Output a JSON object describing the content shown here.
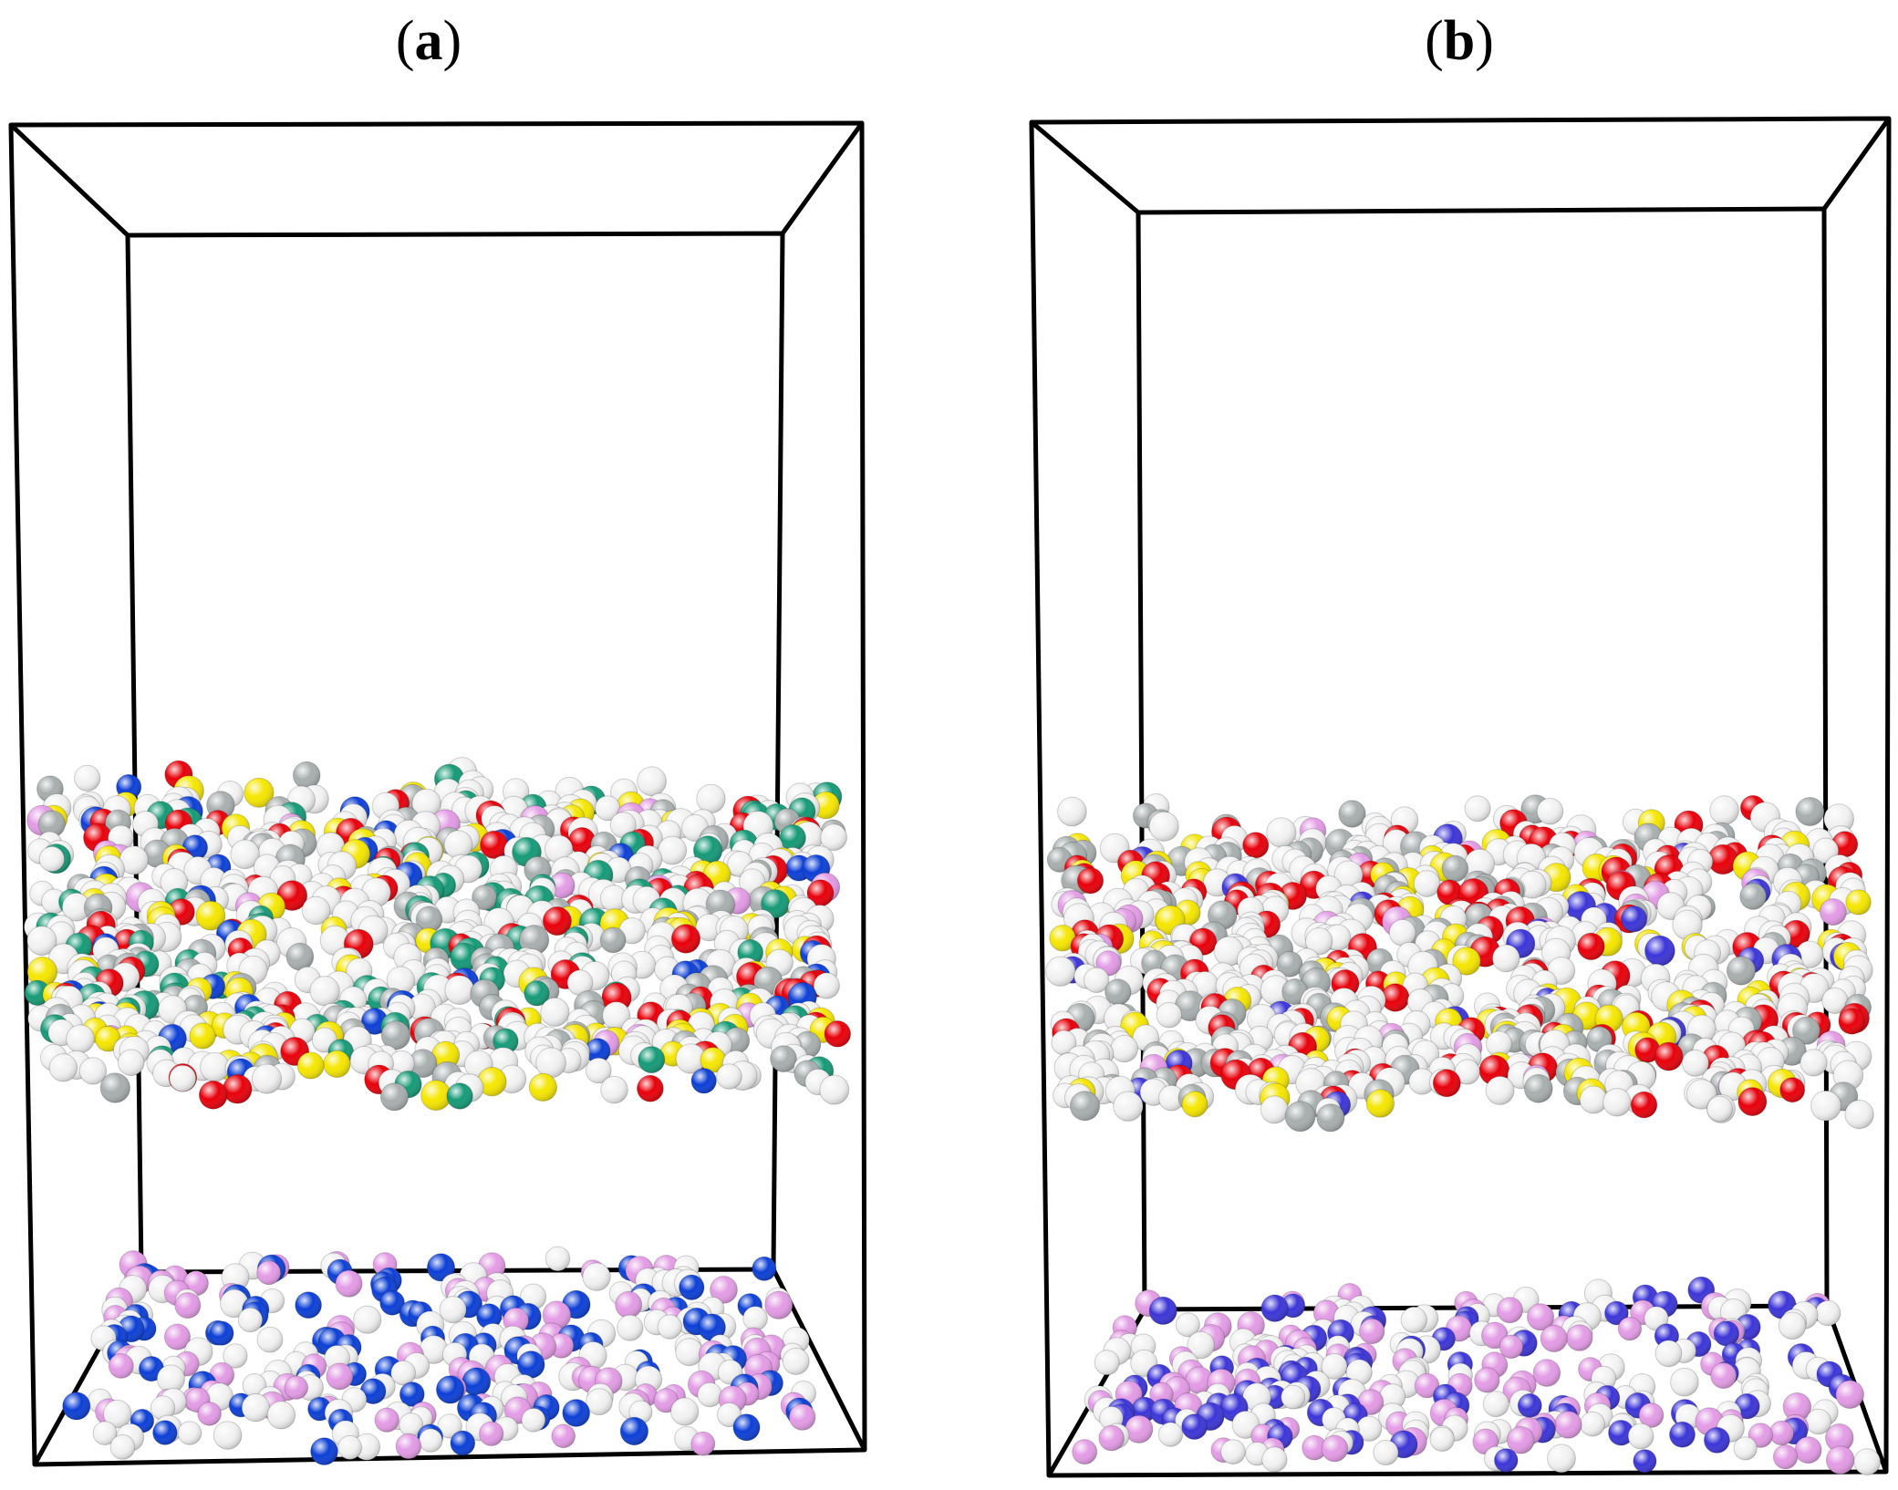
{
  "panels": [
    {
      "id": "a",
      "label_open": "(",
      "label_letter": "a",
      "label_close": ")"
    },
    {
      "id": "b",
      "label_open": "(",
      "label_letter": "b",
      "label_close": ")"
    }
  ],
  "colors": {
    "white": "#f2f2f2",
    "gray": "#a8aeae",
    "red": "#e8000a",
    "yellow": "#f5e600",
    "green": "#159a77",
    "blue": "#0c3fd6",
    "violet": "#3c35d8",
    "pink": "#e39be5",
    "frame": "#000000"
  }
}
